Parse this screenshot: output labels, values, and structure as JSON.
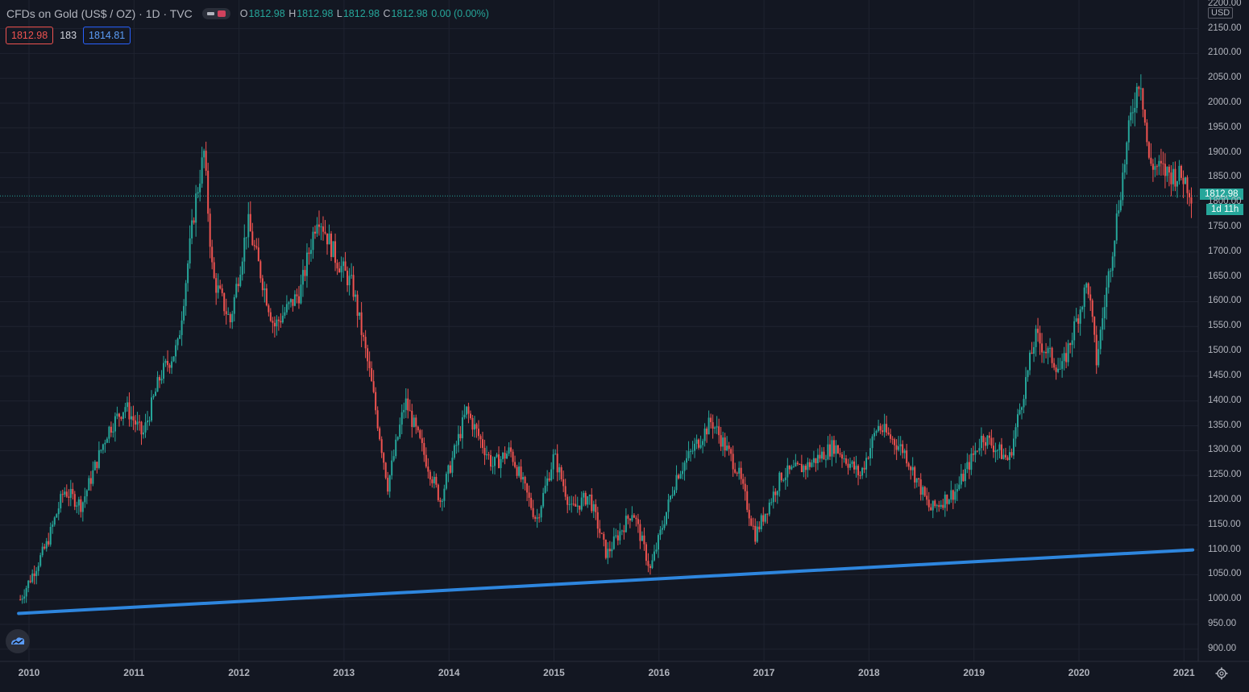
{
  "legend": {
    "symbol": "CFDs on Gold (US$ / OZ) · 1D · TVC",
    "ohlc": [
      {
        "k": "O",
        "v": "1812.98"
      },
      {
        "k": "H",
        "v": "1812.98"
      },
      {
        "k": "L",
        "v": "1812.98"
      },
      {
        "k": "C",
        "v": "1812.98"
      }
    ],
    "change": "0.00 (0.00%)",
    "sell": "1812.98",
    "spread": "183",
    "buy": "1814.81"
  },
  "price_axis": {
    "currency": "USD",
    "last_price": "1812.98",
    "countdown": "1d 11h",
    "top_label": "2200.00"
  },
  "colors": {
    "background": "#131722",
    "up": "#26a69a",
    "down": "#ef5350",
    "trendline": "#2e86de",
    "grid": "#1f2330"
  },
  "icons": {
    "logo": "cloud-logo-icon",
    "settings": "gear-icon"
  },
  "chart_data": {
    "type": "candlestick",
    "ylim": [
      880,
      2200
    ],
    "y_ticks": [
      "2150.00",
      "2100.00",
      "2050.00",
      "2000.00",
      "1950.00",
      "1900.00",
      "1850.00",
      "1800.00",
      "1750.00",
      "1700.00",
      "1650.00",
      "1600.00",
      "1550.00",
      "1500.00",
      "1450.00",
      "1400.00",
      "1350.00",
      "1300.00",
      "1250.00",
      "1200.00",
      "1150.00",
      "1100.00",
      "1050.00",
      "1000.00",
      "950.00",
      "900.00"
    ],
    "x_ticks": [
      "2010",
      "2011",
      "2012",
      "2013",
      "2014",
      "2015",
      "2016",
      "2017",
      "2018",
      "2019",
      "2020",
      "2021"
    ],
    "series": [
      {
        "x": [
          "2009-12",
          "2010-03",
          "2010-05",
          "2010-07",
          "2010-10",
          "2010-12",
          "2011-02",
          "2011-04",
          "2011-06",
          "2011-08",
          "2011-09",
          "2011-10",
          "2011-12",
          "2012-02",
          "2012-05",
          "2012-08",
          "2012-10",
          "2012-12",
          "2013-02",
          "2013-04",
          "2013-06",
          "2013-08",
          "2013-12",
          "2014-03",
          "2014-06",
          "2014-08",
          "2014-11",
          "2015-01",
          "2015-03",
          "2015-05",
          "2015-07",
          "2015-10",
          "2015-12",
          "2016-03",
          "2016-07",
          "2016-10",
          "2016-12",
          "2017-03",
          "2017-06",
          "2017-09",
          "2017-12",
          "2018-02",
          "2018-05",
          "2018-08",
          "2018-11",
          "2019-02",
          "2019-05",
          "2019-08",
          "2019-11",
          "2020-02",
          "2020-03",
          "2020-05",
          "2020-07",
          "2020-08",
          "2020-09",
          "2020-11",
          "2021-01",
          "2021-02"
        ],
        "values": [
          1000,
          1110,
          1220,
          1190,
          1340,
          1390,
          1330,
          1450,
          1510,
          1800,
          1900,
          1650,
          1560,
          1760,
          1550,
          1620,
          1780,
          1690,
          1630,
          1450,
          1230,
          1400,
          1200,
          1380,
          1270,
          1300,
          1160,
          1290,
          1180,
          1210,
          1090,
          1180,
          1060,
          1250,
          1360,
          1260,
          1130,
          1250,
          1270,
          1310,
          1250,
          1350,
          1300,
          1180,
          1220,
          1330,
          1280,
          1530,
          1460,
          1640,
          1480,
          1730,
          1980,
          2060,
          1880,
          1860,
          1850,
          1812.98
        ]
      }
    ],
    "trendline": {
      "start": {
        "x": "2009-12",
        "y": 972
      },
      "end": {
        "x": "2021-02",
        "y": 1100
      }
    },
    "last": 1812.98
  }
}
